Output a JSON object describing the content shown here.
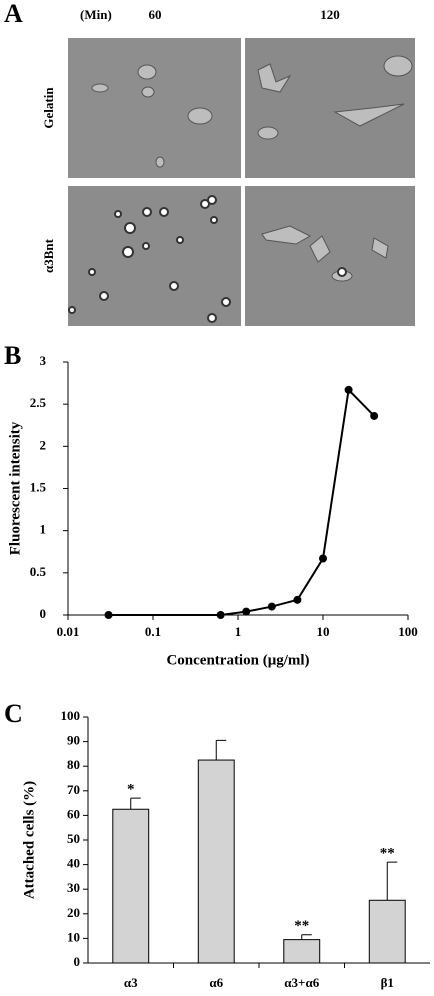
{
  "panel_a": {
    "label": "A",
    "time_unit": "(Min)",
    "times": [
      "60",
      "120"
    ],
    "rows": [
      "Gelatin",
      "α3Bnt"
    ]
  },
  "chart_data": [
    {
      "type": "line",
      "panel": "B",
      "x_label": "Concentration (μg/ml)",
      "y_label": "Fluorescent intensity",
      "x": [
        0.03,
        0.625,
        1.25,
        2.5,
        5,
        10,
        20,
        40
      ],
      "values": [
        0,
        0,
        0.04,
        0.1,
        0.18,
        0.67,
        2.67,
        2.36
      ],
      "color": "#000000",
      "xscale": "log",
      "xlim": [
        0.01,
        100
      ],
      "xticks": [
        0.01,
        0.1,
        1,
        10,
        100
      ],
      "ylim": [
        0,
        3
      ],
      "yticks": [
        0,
        0.5,
        1,
        1.5,
        2,
        2.5,
        3
      ],
      "grid": false
    },
    {
      "type": "bar",
      "panel": "C",
      "y_label": "Attached cells (%)",
      "categories": [
        "α3",
        "α6",
        "α3+α6",
        "β1"
      ],
      "values": [
        62.5,
        82.5,
        9.5,
        25.5
      ],
      "errors": [
        4.5,
        8,
        2,
        15.5
      ],
      "annotations": [
        {
          "label": "*",
          "category": "α3"
        },
        {
          "label": "**",
          "category": "α3+α6"
        },
        {
          "label": "**",
          "category": "β1"
        }
      ],
      "color": "#d3d3d3",
      "ylim": [
        0,
        100
      ],
      "yticks": [
        0,
        10,
        20,
        30,
        40,
        50,
        60,
        70,
        80,
        90,
        100
      ],
      "grid": false
    }
  ]
}
